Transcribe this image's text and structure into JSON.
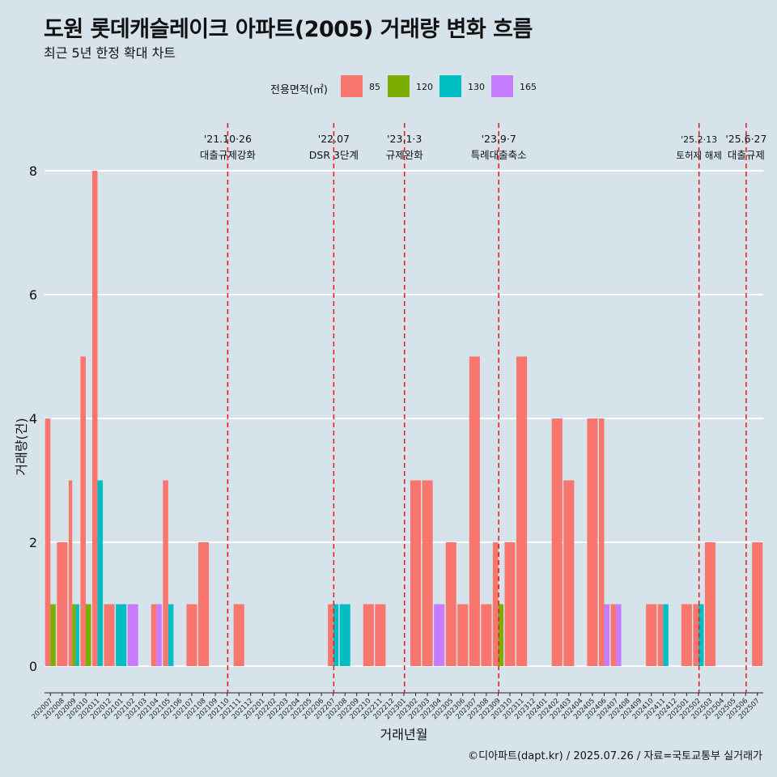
{
  "title": "도원 롯데캐슬레이크 아파트(2005) 거래량 변화 흐름",
  "subtitle": "최근 5년 한정 확대 차트",
  "caption": "©디아파트(dapt.kr) / 2025.07.26 / 자료=국토교통부 실거래가",
  "legend": {
    "title": "전용면적(㎡)",
    "items": [
      {
        "label": "85",
        "color": "#f8766d"
      },
      {
        "label": "120",
        "color": "#7cae00"
      },
      {
        "label": "130",
        "color": "#00bfc4"
      },
      {
        "label": "165",
        "color": "#c77cff"
      }
    ]
  },
  "chart_data": {
    "type": "bar",
    "xlabel": "거래년월",
    "ylabel": "거래량(건)",
    "ylim": [
      0,
      8
    ],
    "yticks": [
      0,
      2,
      4,
      6,
      8
    ],
    "grid": true,
    "legend_position": "top",
    "categories": [
      "202007",
      "202008",
      "202009",
      "202010",
      "202011",
      "202012",
      "202101",
      "202102",
      "202103",
      "202104",
      "202105",
      "202106",
      "202107",
      "202108",
      "202109",
      "202110",
      "202111",
      "202112",
      "202201",
      "202202",
      "202203",
      "202204",
      "202205",
      "202206",
      "202207",
      "202208",
      "202209",
      "202210",
      "202211",
      "202212",
      "202301",
      "202302",
      "202303",
      "202304",
      "202305",
      "202306",
      "202307",
      "202308",
      "202309",
      "202310",
      "202311",
      "202312",
      "202401",
      "202402",
      "202403",
      "202404",
      "202405",
      "202406",
      "202407",
      "202408",
      "202409",
      "202410",
      "202411",
      "202412",
      "202501",
      "202502",
      "202503",
      "202504",
      "202505",
      "202506",
      "202507"
    ],
    "series": [
      {
        "name": "85",
        "color": "#f8766d",
        "values": [
          4,
          2,
          3,
          5,
          8,
          1,
          0,
          0,
          0,
          1,
          3,
          0,
          1,
          2,
          0,
          0,
          1,
          0,
          0,
          0,
          0,
          0,
          0,
          0,
          1,
          0,
          0,
          1,
          1,
          0,
          0,
          3,
          3,
          0,
          2,
          1,
          5,
          1,
          2,
          2,
          5,
          0,
          0,
          4,
          3,
          0,
          4,
          4,
          1,
          0,
          0,
          1,
          1,
          0,
          1,
          1,
          2,
          0,
          0,
          0,
          2
        ]
      },
      {
        "name": "120",
        "color": "#7cae00",
        "values": [
          1,
          0,
          1,
          1,
          0,
          0,
          0,
          0,
          0,
          0,
          0,
          0,
          0,
          0,
          0,
          0,
          0,
          0,
          0,
          0,
          0,
          0,
          0,
          0,
          0,
          0,
          0,
          0,
          0,
          0,
          0,
          0,
          0,
          0,
          0,
          0,
          0,
          0,
          1,
          0,
          0,
          0,
          0,
          0,
          0,
          0,
          0,
          0,
          0,
          0,
          0,
          0,
          0,
          0,
          0,
          0,
          0,
          0,
          0,
          0,
          0
        ]
      },
      {
        "name": "130",
        "color": "#00bfc4",
        "values": [
          0,
          0,
          1,
          0,
          3,
          0,
          1,
          0,
          0,
          0,
          1,
          0,
          0,
          0,
          0,
          0,
          0,
          0,
          0,
          0,
          0,
          0,
          0,
          0,
          1,
          1,
          0,
          0,
          0,
          0,
          0,
          0,
          0,
          0,
          0,
          0,
          0,
          0,
          0,
          0,
          0,
          0,
          0,
          0,
          0,
          0,
          0,
          0,
          0,
          0,
          0,
          0,
          1,
          0,
          0,
          1,
          0,
          0,
          0,
          0,
          0
        ]
      },
      {
        "name": "165",
        "color": "#c77cff",
        "values": [
          0,
          0,
          0,
          0,
          0,
          0,
          0,
          1,
          0,
          1,
          0,
          0,
          0,
          0,
          0,
          0,
          0,
          0,
          0,
          0,
          0,
          0,
          0,
          0,
          0,
          0,
          0,
          0,
          0,
          0,
          0,
          0,
          0,
          1,
          0,
          0,
          0,
          0,
          0,
          0,
          0,
          0,
          0,
          0,
          0,
          0,
          0,
          1,
          1,
          0,
          0,
          0,
          0,
          0,
          0,
          0,
          0,
          0,
          0,
          0,
          0
        ]
      }
    ],
    "events": [
      {
        "category": "202110",
        "date": "'21.10·26",
        "label": "대출규제강화"
      },
      {
        "category": "202207",
        "date": "'22.07",
        "label": "DSR 3단계"
      },
      {
        "category": "202301",
        "date": "'23.1·3",
        "label": "규제완화"
      },
      {
        "category": "202309",
        "date": "'23.9·7",
        "label": "특례대출축소"
      },
      {
        "category": "202502",
        "date": "'25.2·13",
        "label": "토허제 해제"
      },
      {
        "category": "202506",
        "date": "'25.6·27",
        "label": "대출규제"
      }
    ]
  }
}
